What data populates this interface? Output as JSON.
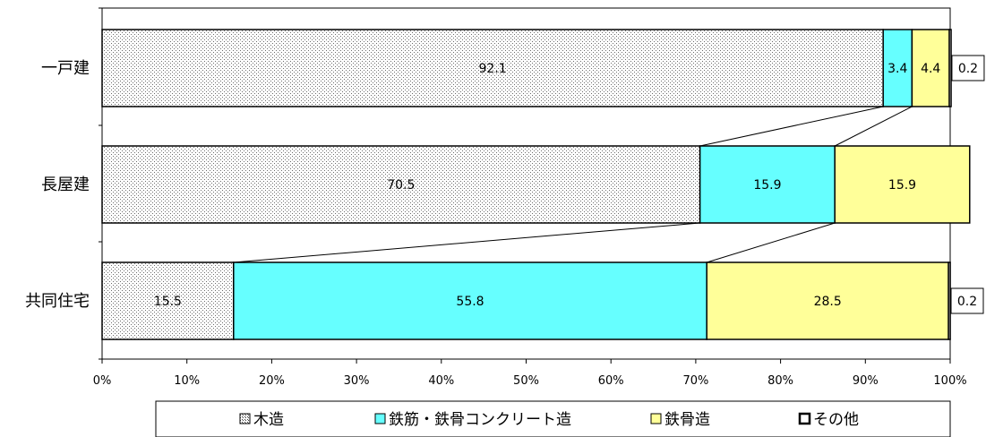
{
  "chart_data": {
    "type": "bar",
    "orientation": "horizontal",
    "stacked": "percent",
    "categories": [
      "一戸建",
      "長屋建",
      "共同住宅"
    ],
    "series": [
      {
        "name": "木造",
        "values": [
          92.1,
          70.5,
          15.5
        ],
        "color": "#d9d9d9",
        "pattern": "dots"
      },
      {
        "name": "鉄筋・鉄骨コンクリート造",
        "values": [
          3.4,
          15.9,
          55.8
        ],
        "color": "#66ffff",
        "pattern": "none"
      },
      {
        "name": "鉄骨造",
        "values": [
          4.4,
          15.9,
          28.5
        ],
        "color": "#ffff99",
        "pattern": "none"
      },
      {
        "name": "その他",
        "values": [
          0.2,
          0.0,
          0.2
        ],
        "color": "#ffffff",
        "pattern": "none"
      }
    ],
    "data_labels": [
      [
        "92.1",
        "3.4",
        "4.4",
        "0.2"
      ],
      [
        "70.5",
        "15.9",
        "15.9",
        ""
      ],
      [
        "15.5",
        "55.8",
        "28.5",
        "0.2"
      ]
    ],
    "xlim": [
      0,
      100
    ],
    "xticks": [
      "0%",
      "10%",
      "20%",
      "30%",
      "40%",
      "50%",
      "60%",
      "70%",
      "80%",
      "90%",
      "100%"
    ],
    "series_lines": true,
    "grid": false,
    "legend_position": "bottom",
    "title": "",
    "xlabel": "",
    "ylabel": ""
  }
}
